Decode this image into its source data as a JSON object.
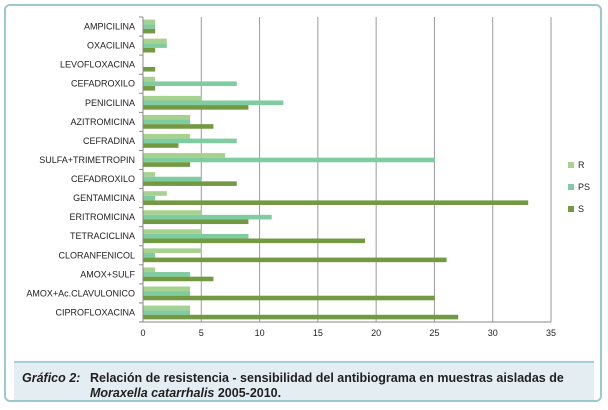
{
  "chart_data": {
    "type": "bar",
    "orientation": "horizontal",
    "categories": [
      "AMPICILINA",
      "OXACILINA",
      "LEVOFLOXACINA",
      "CEFADROXILO",
      "PENICILINA",
      "AZITROMICINA",
      "CEFRADINA",
      "SULFA+TRIMETROPIN",
      "CEFADROXILO",
      "GENTAMICINA",
      "ERITROMICINA",
      "TETRACICLINA",
      "CLORANFENICOL",
      "AMOX+SULF",
      "AMOX+Ac.CLAVULONICO",
      "CIPROFLOXACINA"
    ],
    "series": [
      {
        "name": "R",
        "color": "#a7d18f",
        "values": [
          1,
          2,
          0,
          1,
          5,
          4,
          4,
          7,
          1,
          2,
          5,
          5,
          5,
          1,
          4,
          4
        ]
      },
      {
        "name": "PS",
        "color": "#7fcca0",
        "values": [
          1,
          2,
          0,
          8,
          12,
          4,
          8,
          25,
          5,
          1,
          11,
          9,
          1,
          4,
          4,
          4
        ]
      },
      {
        "name": "S",
        "color": "#739a43",
        "values": [
          1,
          1,
          1,
          1,
          9,
          6,
          3,
          4,
          8,
          33,
          9,
          19,
          26,
          6,
          25,
          27
        ]
      }
    ],
    "xlim": [
      0,
      35
    ],
    "xticks": [
      "0",
      "5",
      "10",
      "15",
      "20",
      "25",
      "30",
      "35"
    ],
    "grid": true,
    "legend_position": "right"
  },
  "caption": {
    "label": "Gráfico 2:",
    "text": "Relación de resistencia - sensibilidad del antibiograma en muestras aisladas de ",
    "italic": "Moraxella catarrhalis",
    "tail": " 2005-2010."
  }
}
